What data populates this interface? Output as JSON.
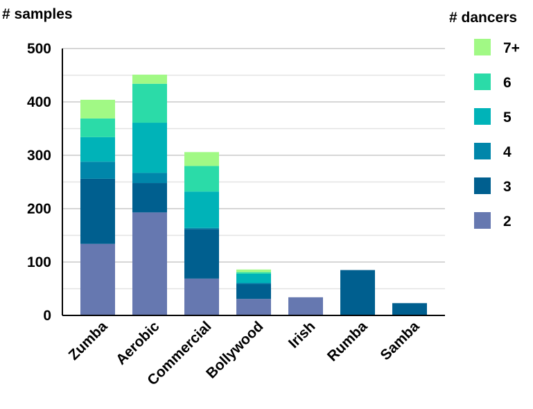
{
  "chart_data": {
    "type": "bar",
    "stacked": true,
    "title": "",
    "ylabel": "# samples",
    "xlabel": "",
    "legend_title": "# dancers",
    "legend_position": "right",
    "grid": true,
    "ylim": [
      0,
      500
    ],
    "yticks": [
      0,
      100,
      200,
      300,
      400,
      500
    ],
    "categories": [
      "Zumba",
      "Aerobic",
      "Commercial",
      "Bollywood",
      "Irish",
      "Rumba",
      "Samba"
    ],
    "series": [
      {
        "name": "2",
        "color": "#6678b0",
        "values": [
          134,
          193,
          69,
          31,
          34,
          0,
          0
        ]
      },
      {
        "name": "3",
        "color": "#005f8f",
        "values": [
          122,
          55,
          93,
          28,
          0,
          85,
          23
        ]
      },
      {
        "name": "4",
        "color": "#0086aa",
        "values": [
          32,
          19,
          2,
          2,
          0,
          0,
          0
        ]
      },
      {
        "name": "5",
        "color": "#00b3b8",
        "values": [
          46,
          94,
          68,
          17,
          0,
          0,
          0
        ]
      },
      {
        "name": "6",
        "color": "#2bdba8",
        "values": [
          35,
          73,
          48,
          3,
          0,
          0,
          0
        ]
      },
      {
        "name": "7+",
        "color": "#a1f985",
        "values": [
          35,
          17,
          26,
          5,
          0,
          0,
          0
        ]
      }
    ]
  }
}
